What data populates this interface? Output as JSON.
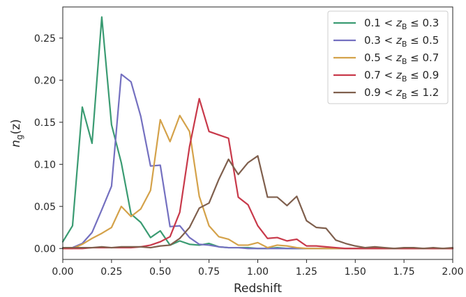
{
  "chart_data": {
    "type": "line",
    "xlabel": "Redshift",
    "ylabel": "n_g(z)",
    "ylabel_parts": {
      "main": "n",
      "sub": "g",
      "rest": "(z)"
    },
    "xlim": [
      0.0,
      2.0
    ],
    "ylim": [
      -0.013,
      0.287
    ],
    "xticks": [
      0.0,
      0.25,
      0.5,
      0.75,
      1.0,
      1.25,
      1.5,
      1.75,
      2.0
    ],
    "xtick_labels": [
      "0.00",
      "0.25",
      "0.50",
      "0.75",
      "1.00",
      "1.25",
      "1.50",
      "1.75",
      "2.00"
    ],
    "yticks": [
      0.0,
      0.05,
      0.1,
      0.15,
      0.2,
      0.25
    ],
    "ytick_labels": [
      "0.00",
      "0.05",
      "0.10",
      "0.15",
      "0.20",
      "0.25"
    ],
    "grid": false,
    "legend_position": "top-right",
    "x": [
      0.0,
      0.05,
      0.1,
      0.15,
      0.2,
      0.25,
      0.3,
      0.35,
      0.4,
      0.45,
      0.5,
      0.55,
      0.6,
      0.65,
      0.7,
      0.75,
      0.8,
      0.85,
      0.9,
      0.95,
      1.0,
      1.05,
      1.1,
      1.15,
      1.2,
      1.25,
      1.3,
      1.35,
      1.4,
      1.45,
      1.5,
      1.55,
      1.6,
      1.65,
      1.7,
      1.75,
      1.8,
      1.85,
      1.9,
      1.95,
      2.0
    ],
    "series": [
      {
        "label": {
          "lo": "0.1",
          "hi": "0.3"
        },
        "color": "#3a9b72",
        "values": [
          0.008,
          0.027,
          0.168,
          0.125,
          0.275,
          0.147,
          0.102,
          0.041,
          0.031,
          0.013,
          0.021,
          0.004,
          0.009,
          0.005,
          0.004,
          0.006,
          0.002,
          0.001,
          0.001,
          0.001,
          0.0,
          0.0,
          0.001,
          0.0,
          0.0,
          0.0,
          0.0,
          0.0,
          0.0,
          0.0,
          0.0,
          0.0,
          0.0,
          0.0,
          0.0,
          0.0,
          0.0,
          0.0,
          0.0,
          0.0,
          0.0
        ]
      },
      {
        "label": {
          "lo": "0.3",
          "hi": "0.5"
        },
        "color": "#7470c0",
        "values": [
          0.0,
          0.001,
          0.006,
          0.019,
          0.046,
          0.074,
          0.207,
          0.198,
          0.157,
          0.098,
          0.099,
          0.026,
          0.027,
          0.013,
          0.005,
          0.004,
          0.002,
          0.001,
          0.001,
          0.0,
          0.0,
          0.0,
          0.0,
          0.0,
          0.0,
          0.0,
          0.0,
          0.0,
          0.0,
          0.0,
          0.0,
          0.0,
          0.0,
          0.0,
          0.0,
          0.0,
          0.0,
          0.0,
          0.0,
          0.0,
          0.0
        ]
      },
      {
        "label": {
          "lo": "0.5",
          "hi": "0.7"
        },
        "color": "#d4a24a",
        "values": [
          0.0,
          0.0,
          0.005,
          0.012,
          0.018,
          0.025,
          0.05,
          0.038,
          0.047,
          0.069,
          0.153,
          0.127,
          0.158,
          0.139,
          0.062,
          0.027,
          0.014,
          0.011,
          0.004,
          0.004,
          0.007,
          0.001,
          0.004,
          0.003,
          0.001,
          0.0,
          0.0,
          0.0,
          0.0,
          0.0,
          0.0,
          0.0,
          0.0,
          0.0,
          0.0,
          0.0,
          0.0,
          0.0,
          0.0,
          0.0,
          0.0
        ]
      },
      {
        "label": {
          "lo": "0.7",
          "hi": "0.9"
        },
        "color": "#c8394a",
        "values": [
          0.0,
          0.0,
          0.0,
          0.001,
          0.001,
          0.001,
          0.001,
          0.001,
          0.002,
          0.004,
          0.008,
          0.014,
          0.043,
          0.121,
          0.178,
          0.139,
          0.135,
          0.131,
          0.061,
          0.052,
          0.027,
          0.012,
          0.013,
          0.009,
          0.011,
          0.003,
          0.003,
          0.002,
          0.001,
          0.0,
          0.0,
          0.0,
          0.0,
          0.0,
          0.0,
          0.0,
          0.0,
          0.0,
          0.0,
          0.0,
          0.0
        ]
      },
      {
        "label": {
          "lo": "0.9",
          "hi": "1.2"
        },
        "color": "#7f5f4d",
        "values": [
          0.001,
          0.001,
          0.001,
          0.001,
          0.002,
          0.001,
          0.002,
          0.002,
          0.002,
          0.001,
          0.003,
          0.004,
          0.012,
          0.025,
          0.048,
          0.054,
          0.082,
          0.106,
          0.088,
          0.102,
          0.11,
          0.061,
          0.061,
          0.051,
          0.062,
          0.033,
          0.025,
          0.024,
          0.01,
          0.006,
          0.003,
          0.001,
          0.002,
          0.001,
          0.0,
          0.001,
          0.001,
          0.0,
          0.001,
          0.0,
          0.001
        ]
      }
    ]
  }
}
